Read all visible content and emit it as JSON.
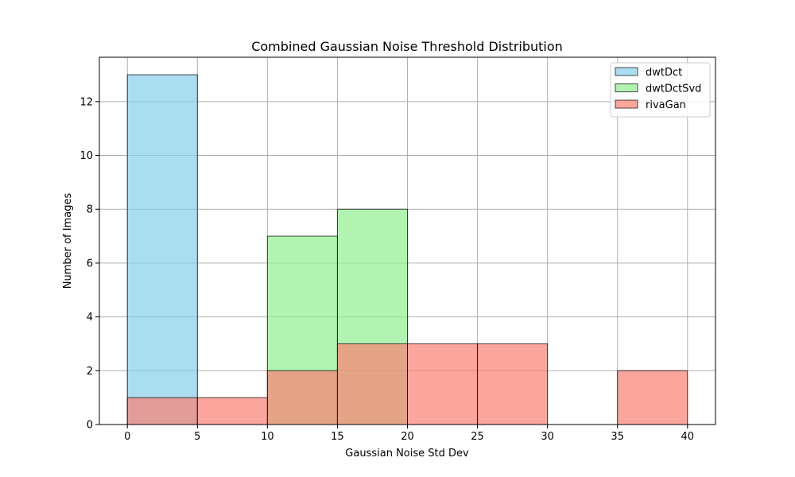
{
  "chart_data": {
    "type": "bar",
    "subtype": "histogram",
    "title": "Combined Gaussian Noise Threshold Distribution",
    "xlabel": "Gaussian Noise Std Dev",
    "ylabel": "Number of Images",
    "xlim": [
      -2,
      42
    ],
    "ylim": [
      0,
      13.65
    ],
    "bin_edges": [
      0,
      5,
      10,
      15,
      20,
      25,
      30,
      35,
      40
    ],
    "x_ticks": [
      0,
      5,
      10,
      15,
      20,
      25,
      30,
      35,
      40
    ],
    "x_tick_labels": [
      "0",
      "5",
      "10",
      "15",
      "20",
      "25",
      "30",
      "35",
      "40"
    ],
    "y_ticks": [
      0,
      2,
      4,
      6,
      8,
      10,
      12
    ],
    "y_tick_labels": [
      "0",
      "2",
      "4",
      "6",
      "8",
      "10",
      "12"
    ],
    "grid": true,
    "legend_position": "top-right",
    "series": [
      {
        "name": "dwtDct",
        "color": "#87ceeb",
        "values": [
          13,
          0,
          0,
          0,
          0,
          0,
          0,
          0
        ]
      },
      {
        "name": "dwtDctSvd",
        "color": "#90ee90",
        "values": [
          0,
          0,
          7,
          8,
          0,
          0,
          0,
          0
        ]
      },
      {
        "name": "rivaGan",
        "color": "#fa8072",
        "values": [
          1,
          1,
          2,
          3,
          3,
          3,
          0,
          2
        ]
      }
    ]
  }
}
